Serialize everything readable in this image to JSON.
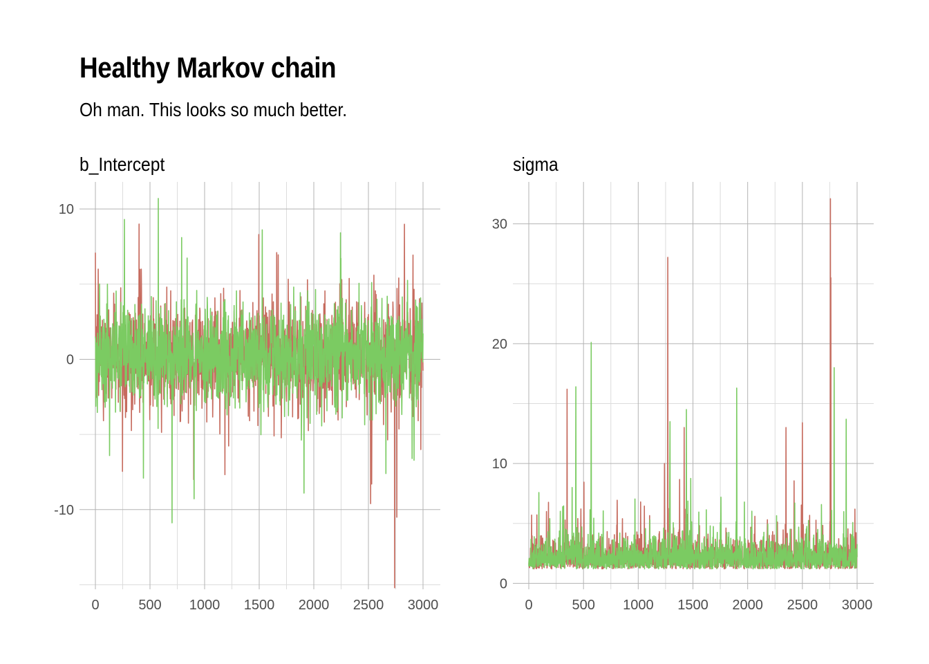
{
  "title": "Healthy Markov chain",
  "subtitle": "Oh man. This looks so much better.",
  "colors": {
    "chain1": "#c66b5e",
    "chain2": "#7bcb62",
    "grid_major": "#b3b3b3",
    "grid_minor": "#dcdcdc",
    "tick_text": "#4d4d4d"
  },
  "chart_data": [
    {
      "type": "line",
      "facet": "b_Intercept",
      "x_range": [
        0,
        3000
      ],
      "ylim": [
        -15.3,
        11.8
      ],
      "x_ticks": [
        0,
        500,
        1000,
        1500,
        2000,
        2500,
        3000
      ],
      "y_ticks": [
        10,
        0,
        -10
      ],
      "x_tick_labels": [
        "0",
        "500",
        "1000",
        "1500",
        "2000",
        "2500",
        "3000"
      ],
      "y_tick_labels": [
        "10",
        "0",
        "-10"
      ],
      "grid": true,
      "legend": "none",
      "series": [
        {
          "values_summary": "trace noise around 0, range ~-15 to 9",
          "center": 0.2,
          "spread": 1.6,
          "spikes": [
            [
              25,
              6.0
            ],
            [
              400,
              9.0
            ],
            [
              420,
              6.0
            ],
            [
              1660,
              7.1
            ],
            [
              2520,
              -9.6
            ],
            [
              2550,
              5.6
            ],
            [
              2740,
              -15.2
            ],
            [
              2760,
              -10.5
            ],
            [
              900,
              -8.0
            ],
            [
              2980,
              -6.0
            ]
          ]
        },
        {
          "values_summary": "trace noise around 0, range ~-9 to 11",
          "center": 0.2,
          "spread": 1.6,
          "spikes": [
            [
              265,
              9.3
            ],
            [
              575,
              10.7
            ],
            [
              790,
              8.1
            ],
            [
              130,
              -6.4
            ],
            [
              440,
              -7.9
            ],
            [
              1910,
              -8.9
            ],
            [
              2660,
              -7.6
            ],
            [
              2900,
              -6.6
            ]
          ]
        }
      ]
    },
    {
      "type": "line",
      "facet": "sigma",
      "x_range": [
        0,
        3000
      ],
      "ylim": [
        -0.5,
        33.5
      ],
      "x_ticks": [
        0,
        500,
        1000,
        1500,
        2000,
        2500,
        3000
      ],
      "y_ticks": [
        30,
        20,
        10,
        0
      ],
      "x_tick_labels": [
        "0",
        "500",
        "1000",
        "1500",
        "2000",
        "2500",
        "3000"
      ],
      "y_tick_labels": [
        "30",
        "20",
        "10",
        "0"
      ],
      "grid": true,
      "legend": "none",
      "series": [
        {
          "values_summary": "positive noise ~1-4 with spikes",
          "center": 1.8,
          "spread": 1.2,
          "spikes": [
            [
              350,
              16.2
            ],
            [
              1270,
              27.2
            ],
            [
              1240,
              10.0
            ],
            [
              1420,
              13.0
            ],
            [
              2350,
              13.0
            ],
            [
              2500,
              13.4
            ],
            [
              2755,
              32.1
            ],
            [
              2760,
              25.5
            ]
          ]
        },
        {
          "values_summary": "positive noise ~1-4 with spikes",
          "center": 1.8,
          "spread": 1.2,
          "spikes": [
            [
              430,
              16.4
            ],
            [
              570,
              20.1
            ],
            [
              1290,
              13.5
            ],
            [
              1440,
              14.5
            ],
            [
              1900,
              16.3
            ],
            [
              2790,
              18.0
            ],
            [
              2900,
              13.7
            ]
          ]
        }
      ]
    }
  ]
}
